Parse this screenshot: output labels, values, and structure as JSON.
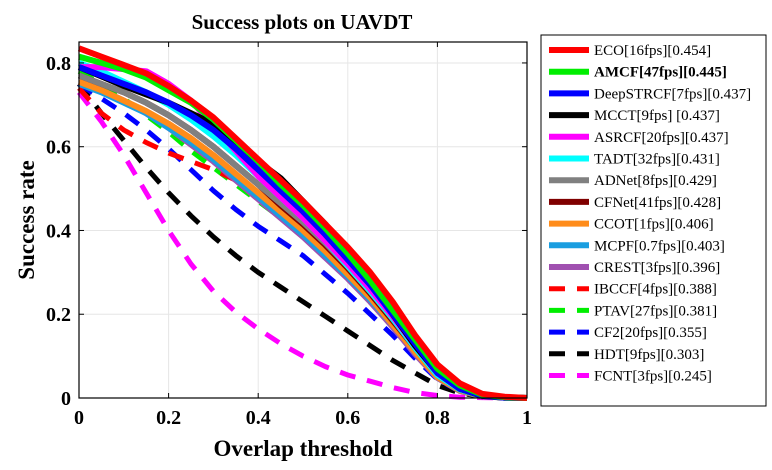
{
  "chart_data": {
    "type": "line",
    "title": "Success plots on UAVDT",
    "xlabel": "Overlap threshold",
    "ylabel": "Success rate",
    "xlim": [
      0,
      1
    ],
    "ylim": [
      0,
      0.85
    ],
    "xticks": [
      "0",
      "0.2",
      "0.4",
      "0.6",
      "0.8",
      "1"
    ],
    "yticks": [
      "0",
      "0.2",
      "0.4",
      "0.6",
      "0.8"
    ],
    "xtick_values": [
      0,
      0.2,
      0.4,
      0.6,
      0.8,
      1
    ],
    "ytick_values": [
      0,
      0.2,
      0.4,
      0.6,
      0.8
    ],
    "grid": true,
    "legend_position": "right-outside",
    "x": [
      0,
      0.05,
      0.1,
      0.15,
      0.2,
      0.25,
      0.3,
      0.35,
      0.4,
      0.45,
      0.5,
      0.55,
      0.6,
      0.65,
      0.7,
      0.75,
      0.8,
      0.85,
      0.9,
      0.95,
      1
    ],
    "series": [
      {
        "name": "ECO[16fps][0.454]",
        "color": "#ff0000",
        "dash": "solid",
        "bold": false,
        "values": [
          0.835,
          0.815,
          0.795,
          0.775,
          0.745,
          0.71,
          0.67,
          0.62,
          0.57,
          0.52,
          0.47,
          0.415,
          0.36,
          0.3,
          0.23,
          0.15,
          0.08,
          0.035,
          0.01,
          0.003,
          0
        ]
      },
      {
        "name": "AMCF[47fps][0.445]",
        "color": "#00ee00",
        "dash": "solid",
        "bold": true,
        "values": [
          0.815,
          0.8,
          0.785,
          0.765,
          0.735,
          0.705,
          0.665,
          0.615,
          0.565,
          0.51,
          0.46,
          0.405,
          0.345,
          0.28,
          0.21,
          0.14,
          0.07,
          0.03,
          0.008,
          0.002,
          0
        ]
      },
      {
        "name": "DeepSTRCF[7fps][0.437]",
        "color": "#0000ff",
        "dash": "solid",
        "bold": false,
        "values": [
          0.79,
          0.77,
          0.75,
          0.73,
          0.705,
          0.675,
          0.64,
          0.595,
          0.545,
          0.495,
          0.445,
          0.39,
          0.33,
          0.27,
          0.2,
          0.13,
          0.06,
          0.022,
          0.006,
          0.001,
          0
        ]
      },
      {
        "name": "MCCT[9fps] [0.437]",
        "color": "#000000",
        "dash": "solid",
        "bold": false,
        "values": [
          0.79,
          0.768,
          0.745,
          0.725,
          0.705,
          0.68,
          0.655,
          0.61,
          0.565,
          0.525,
          0.47,
          0.415,
          0.35,
          0.275,
          0.2,
          0.125,
          0.06,
          0.022,
          0.005,
          0.001,
          0
        ]
      },
      {
        "name": "ASRCF[20fps][0.437]",
        "color": "#ff00ff",
        "dash": "solid",
        "bold": false,
        "values": [
          0.79,
          0.79,
          0.785,
          0.78,
          0.75,
          0.71,
          0.65,
          0.59,
          0.53,
          0.48,
          0.43,
          0.375,
          0.32,
          0.26,
          0.195,
          0.125,
          0.06,
          0.022,
          0.006,
          0.001,
          0
        ]
      },
      {
        "name": "TADT[32fps][0.431]",
        "color": "#00ffff",
        "dash": "solid",
        "bold": false,
        "values": [
          0.8,
          0.78,
          0.755,
          0.73,
          0.7,
          0.665,
          0.625,
          0.58,
          0.53,
          0.48,
          0.43,
          0.375,
          0.315,
          0.255,
          0.19,
          0.12,
          0.055,
          0.02,
          0.005,
          0.001,
          0
        ]
      },
      {
        "name": "ADNet[8fps][0.429]",
        "color": "#808080",
        "dash": "solid",
        "bold": false,
        "values": [
          0.77,
          0.75,
          0.73,
          0.705,
          0.675,
          0.64,
          0.6,
          0.555,
          0.51,
          0.465,
          0.42,
          0.37,
          0.315,
          0.255,
          0.19,
          0.125,
          0.06,
          0.022,
          0.006,
          0.001,
          0
        ]
      },
      {
        "name": "CFNet[41fps][0.428]",
        "color": "#800000",
        "dash": "solid",
        "bold": false,
        "values": [
          0.77,
          0.75,
          0.73,
          0.705,
          0.675,
          0.64,
          0.6,
          0.555,
          0.51,
          0.46,
          0.415,
          0.365,
          0.31,
          0.25,
          0.185,
          0.12,
          0.055,
          0.02,
          0.005,
          0.001,
          0
        ]
      },
      {
        "name": "CCOT[1fps][0.406]",
        "color": "#ff8c1a",
        "dash": "solid",
        "bold": false,
        "values": [
          0.755,
          0.735,
          0.71,
          0.685,
          0.655,
          0.62,
          0.58,
          0.535,
          0.49,
          0.445,
          0.4,
          0.35,
          0.295,
          0.24,
          0.175,
          0.11,
          0.05,
          0.018,
          0.005,
          0.001,
          0
        ]
      },
      {
        "name": "MCPF[0.7fps][0.403]",
        "color": "#1a9ee0",
        "dash": "solid",
        "bold": false,
        "values": [
          0.75,
          0.73,
          0.705,
          0.68,
          0.645,
          0.61,
          0.57,
          0.525,
          0.48,
          0.435,
          0.39,
          0.34,
          0.29,
          0.235,
          0.175,
          0.11,
          0.05,
          0.018,
          0.005,
          0.001,
          0
        ]
      },
      {
        "name": "CREST[3fps][0.396]",
        "color": "#a050b0",
        "dash": "solid",
        "bold": false,
        "values": [
          0.755,
          0.735,
          0.71,
          0.68,
          0.645,
          0.605,
          0.565,
          0.52,
          0.475,
          0.43,
          0.385,
          0.335,
          0.285,
          0.23,
          0.17,
          0.105,
          0.048,
          0.017,
          0.004,
          0.001,
          0
        ]
      },
      {
        "name": "IBCCF[4fps][0.388]",
        "color": "#ff0000",
        "dash": "dashed",
        "bold": false,
        "values": [
          0.74,
          0.68,
          0.64,
          0.61,
          0.585,
          0.565,
          0.545,
          0.52,
          0.49,
          0.455,
          0.415,
          0.37,
          0.32,
          0.26,
          0.19,
          0.12,
          0.055,
          0.02,
          0.005,
          0.001,
          0
        ]
      },
      {
        "name": "PTAV[27fps][0.381]",
        "color": "#00ee00",
        "dash": "dashed",
        "bold": false,
        "values": [
          0.78,
          0.75,
          0.715,
          0.675,
          0.635,
          0.59,
          0.55,
          0.51,
          0.47,
          0.43,
          0.385,
          0.335,
          0.285,
          0.23,
          0.17,
          0.105,
          0.048,
          0.017,
          0.004,
          0.001,
          0
        ]
      },
      {
        "name": "CF2[20fps][0.355]",
        "color": "#0000ff",
        "dash": "dashed",
        "bold": false,
        "values": [
          0.75,
          0.715,
          0.68,
          0.64,
          0.595,
          0.545,
          0.495,
          0.45,
          0.41,
          0.375,
          0.34,
          0.295,
          0.25,
          0.2,
          0.15,
          0.095,
          0.045,
          0.016,
          0.004,
          0.001,
          0
        ]
      },
      {
        "name": "HDT[9fps][0.303]",
        "color": "#000000",
        "dash": "dashed",
        "bold": false,
        "values": [
          0.75,
          0.68,
          0.615,
          0.55,
          0.49,
          0.435,
          0.385,
          0.34,
          0.3,
          0.265,
          0.23,
          0.195,
          0.16,
          0.125,
          0.09,
          0.06,
          0.03,
          0.012,
          0.003,
          0.001,
          0
        ]
      },
      {
        "name": "FCNT[3fps][0.245]",
        "color": "#ff00ff",
        "dash": "dashed",
        "bold": false,
        "values": [
          0.73,
          0.66,
          0.58,
          0.49,
          0.4,
          0.32,
          0.255,
          0.205,
          0.165,
          0.13,
          0.1,
          0.075,
          0.055,
          0.04,
          0.025,
          0.013,
          0.006,
          0.002,
          0.001,
          0,
          0
        ]
      }
    ]
  }
}
